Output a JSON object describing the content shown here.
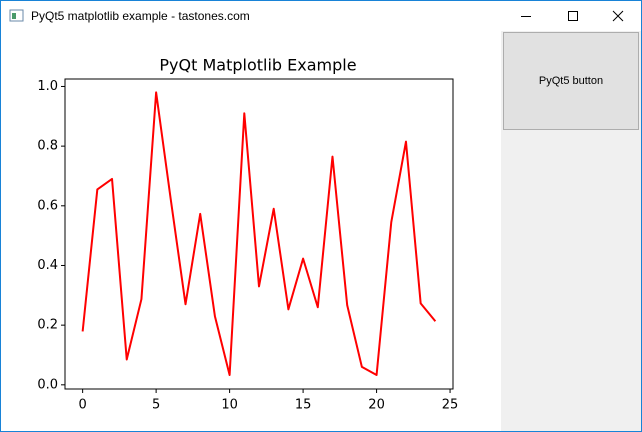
{
  "window": {
    "title": "PyQt5 matplotlib example - tastones.com"
  },
  "button": {
    "label": "PyQt5 button"
  },
  "chart_data": {
    "type": "line",
    "title": "PyQt Matplotlib Example",
    "x": [
      0,
      1,
      2,
      3,
      4,
      5,
      6,
      7,
      8,
      9,
      10,
      11,
      12,
      13,
      14,
      15,
      16,
      17,
      18,
      19,
      20,
      21,
      22,
      23,
      24
    ],
    "values": [
      0.179,
      0.655,
      0.69,
      0.085,
      0.287,
      0.98,
      0.62,
      0.27,
      0.573,
      0.23,
      0.033,
      0.91,
      0.33,
      0.59,
      0.253,
      0.423,
      0.26,
      0.765,
      0.267,
      0.06,
      0.033,
      0.545,
      0.815,
      0.273,
      0.213
    ],
    "color": "#ff0000",
    "xlim": [
      -1.2,
      25.2
    ],
    "xticks": [
      0,
      5,
      10,
      15,
      20,
      25
    ],
    "ylim": [
      -0.014,
      1.025
    ],
    "yticks": [
      {
        "value": 0,
        "label": "0.0"
      },
      {
        "value": 0.2,
        "label": "0.2"
      },
      {
        "value": 0.4,
        "label": "0.4"
      },
      {
        "value": 0.6,
        "label": "0.6"
      },
      {
        "value": 0.8,
        "label": "0.8"
      },
      {
        "value": 1,
        "label": "1.0"
      }
    ]
  }
}
